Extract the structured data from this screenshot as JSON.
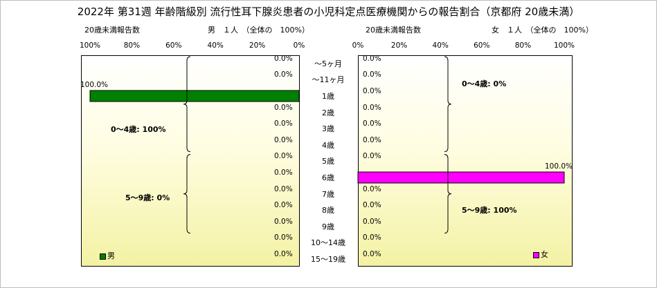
{
  "title": "2022年 第31週 年齢階級別 流行性耳下腺炎患者の小児科定点医療機関からの報告割合（京都府 20歳未満）",
  "colors": {
    "male": "#008000",
    "female": "#ff00ff",
    "male_name": "green",
    "female_name": "magenta"
  },
  "chart_data": [
    {
      "type": "bar",
      "orientation": "horizontal",
      "direction": "right-to-left",
      "side": "left",
      "xlabel": "20歳未満報告数",
      "subtitle": "男　１人　（全体の　100%）",
      "xlim": [
        0,
        100
      ],
      "ticks": [
        "100%",
        "80%",
        "60%",
        "40%",
        "20%",
        "0%"
      ],
      "categories": [
        "～5ヶ月",
        "～11ヶ月",
        "1歳",
        "2歳",
        "3歳",
        "4歳",
        "5歳",
        "6歳",
        "7歳",
        "8歳",
        "9歳",
        "10～14歳",
        "15～19歳"
      ],
      "series": [
        {
          "name": "男",
          "values": [
            0,
            0,
            100,
            0,
            0,
            0,
            0,
            0,
            0,
            0,
            0,
            0,
            0
          ]
        }
      ],
      "data_labels": [
        "0.0%",
        "0.0%",
        "100.0%",
        "0.0%",
        "0.0%",
        "0.0%",
        "0.0%",
        "0.0%",
        "0.0%",
        "0.0%",
        "0.0%",
        "0.0%",
        "0.0%"
      ],
      "annotations": [
        "0～4歳: 100%",
        "5～9歳: 0%"
      ],
      "legend": "bottom-left",
      "grid": false
    },
    {
      "type": "bar",
      "orientation": "horizontal",
      "direction": "left-to-right",
      "side": "right",
      "xlabel": "20歳未満報告数",
      "subtitle": "女　１人　（全体の　100%）",
      "xlim": [
        0,
        100
      ],
      "ticks": [
        "0%",
        "20%",
        "40%",
        "60%",
        "80%",
        "100%"
      ],
      "categories": [
        "～5ヶ月",
        "～11ヶ月",
        "1歳",
        "2歳",
        "3歳",
        "4歳",
        "5歳",
        "6歳",
        "7歳",
        "8歳",
        "9歳",
        "10～14歳",
        "15～19歳"
      ],
      "series": [
        {
          "name": "女",
          "values": [
            0,
            0,
            0,
            0,
            0,
            0,
            0,
            100,
            0,
            0,
            0,
            0,
            0
          ]
        }
      ],
      "data_labels": [
        "0.0%",
        "0.0%",
        "0.0%",
        "0.0%",
        "0.0%",
        "0.0%",
        "0.0%",
        "100.0%",
        "0.0%",
        "0.0%",
        "0.0%",
        "0.0%",
        "0.0%"
      ],
      "annotations": [
        "0～4歳: 0%",
        "5～9歳: 100%"
      ],
      "legend": "bottom-right",
      "grid": false
    }
  ]
}
